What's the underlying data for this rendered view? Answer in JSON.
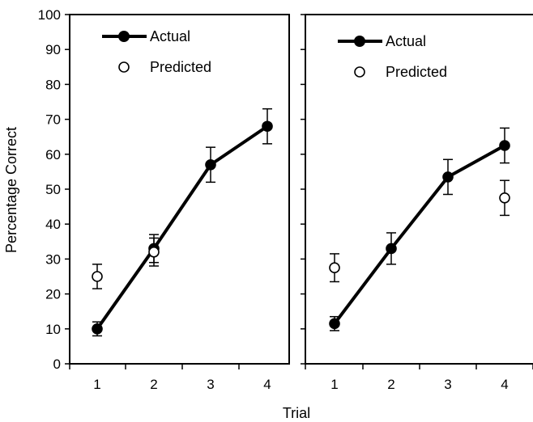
{
  "chart_data": {
    "type": "line",
    "ylabel": "Percentage Correct",
    "xlabel": "Trial",
    "ylim": [
      0,
      100
    ],
    "yticks": [
      0,
      10,
      20,
      30,
      40,
      50,
      60,
      70,
      80,
      90,
      100
    ],
    "categories": [
      "1",
      "2",
      "3",
      "4"
    ],
    "panels": [
      {
        "legend": {
          "position": "top-left",
          "entries": [
            "Actual",
            "Predicted"
          ]
        },
        "series": [
          {
            "name": "Actual",
            "marker": "filled-circle",
            "line": true,
            "values": [
              10,
              33,
              57,
              68
            ],
            "errors": [
              2,
              4,
              5,
              5
            ]
          },
          {
            "name": "Predicted",
            "marker": "open-circle",
            "line": false,
            "values": [
              25,
              32,
              null,
              null
            ],
            "errors": [
              3.5,
              4,
              null,
              null
            ]
          }
        ]
      },
      {
        "legend": {
          "position": "top-left",
          "entries": [
            "Actual",
            "Predicted"
          ]
        },
        "series": [
          {
            "name": "Actual",
            "marker": "filled-circle",
            "line": true,
            "values": [
              11.5,
              33,
              53.5,
              62.5
            ],
            "errors": [
              2,
              4.5,
              5,
              5
            ]
          },
          {
            "name": "Predicted",
            "marker": "open-circle",
            "line": false,
            "values": [
              27.5,
              null,
              null,
              47.5
            ],
            "errors": [
              4,
              null,
              null,
              5
            ]
          }
        ]
      }
    ]
  }
}
